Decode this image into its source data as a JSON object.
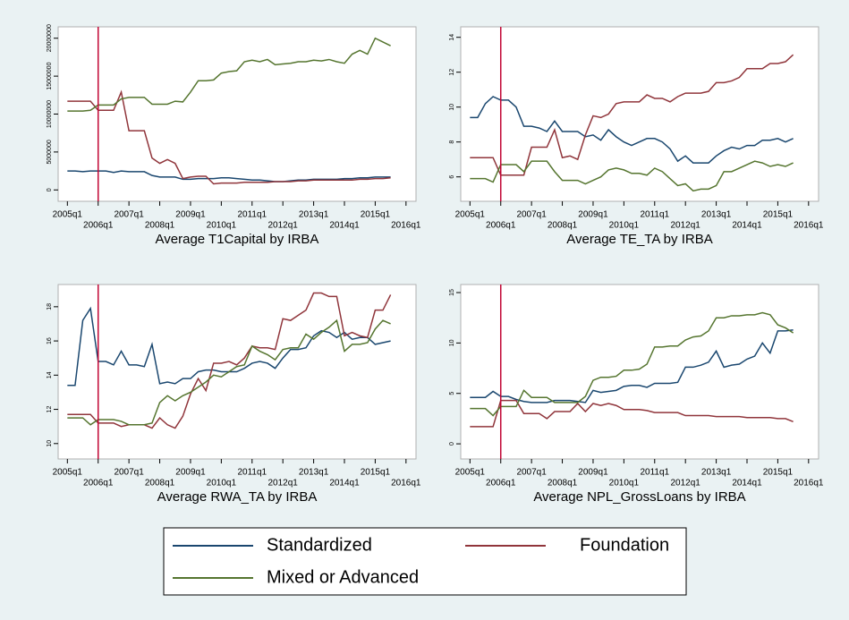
{
  "chart_data": [
    {
      "type": "line",
      "title": "Average T1Capital by IRBA",
      "x": [
        180,
        181,
        182,
        183,
        184,
        185,
        186,
        187,
        188,
        189,
        190,
        191,
        192,
        193,
        194,
        195,
        196,
        197,
        198,
        199,
        200,
        201,
        202,
        203,
        204,
        205,
        206,
        207,
        208,
        209,
        210,
        211,
        212,
        213,
        214,
        215,
        216,
        217,
        218,
        219,
        220,
        221,
        222
      ],
      "xlim": [
        178.8,
        225.3
      ],
      "xticks": [
        {
          "value": 180,
          "label": "2005q1"
        },
        {
          "value": 184,
          "label": "2006q1"
        },
        {
          "value": 188,
          "label": "2007q1"
        },
        {
          "value": 192,
          "label": "2008q1"
        },
        {
          "value": 196,
          "label": "2009q1"
        },
        {
          "value": 200,
          "label": "2010q1"
        },
        {
          "value": 204,
          "label": "2011q1"
        },
        {
          "value": 208,
          "label": "2012q1"
        },
        {
          "value": 212,
          "label": "2013q1"
        },
        {
          "value": 216,
          "label": "2014q1"
        },
        {
          "value": 220,
          "label": "2015q1"
        },
        {
          "value": 224,
          "label": "2016q1"
        }
      ],
      "ylim": [
        -1500000,
        21500000
      ],
      "yticks": [
        0,
        5000000,
        10000000,
        15000000,
        20000000
      ],
      "vline": 184,
      "vline_color": "#c10534",
      "series": [
        {
          "name": "Standardized",
          "color": "#1a476f",
          "values": [
            2500000,
            2500000,
            2400000,
            2500000,
            2500000,
            2500000,
            2300000,
            2500000,
            2400000,
            2400000,
            2400000,
            1900000,
            1700000,
            1700000,
            1700000,
            1400000,
            1400000,
            1500000,
            1500000,
            1500000,
            1600000,
            1600000,
            1500000,
            1400000,
            1300000,
            1300000,
            1200000,
            1100000,
            1100000,
            1200000,
            1300000,
            1300000,
            1400000,
            1400000,
            1400000,
            1400000,
            1500000,
            1500000,
            1600000,
            1600000,
            1700000,
            1700000,
            1700000
          ]
        },
        {
          "name": "Foundation",
          "color": "#90353b",
          "values": [
            11700000,
            11700000,
            11700000,
            11700000,
            10500000,
            10500000,
            10500000,
            12900000,
            7800000,
            7800000,
            7800000,
            4200000,
            3500000,
            4000000,
            3500000,
            1500000,
            1700000,
            1800000,
            1800000,
            800000,
            900000,
            900000,
            900000,
            1000000,
            1000000,
            1000000,
            1000000,
            1100000,
            1100000,
            1100000,
            1200000,
            1200000,
            1300000,
            1300000,
            1300000,
            1300000,
            1300000,
            1300000,
            1400000,
            1400000,
            1500000,
            1500000,
            1600000
          ]
        },
        {
          "name": "Mixed or Advanced",
          "color": "#55752f",
          "values": [
            10400000,
            10400000,
            10400000,
            10500000,
            11200000,
            11200000,
            11200000,
            12000000,
            12200000,
            12200000,
            12200000,
            11300000,
            11300000,
            11300000,
            11700000,
            11600000,
            12900000,
            14400000,
            14400000,
            14500000,
            15400000,
            15600000,
            15700000,
            16900000,
            17100000,
            16900000,
            17200000,
            16500000,
            16600000,
            16700000,
            16900000,
            16900000,
            17100000,
            17000000,
            17200000,
            16900000,
            16700000,
            17900000,
            18400000,
            17900000,
            20000000,
            19500000,
            19000000
          ]
        }
      ]
    },
    {
      "type": "line",
      "title": "Average TE_TA by IRBA",
      "x": [
        180,
        181,
        182,
        183,
        184,
        185,
        186,
        187,
        188,
        189,
        190,
        191,
        192,
        193,
        194,
        195,
        196,
        197,
        198,
        199,
        200,
        201,
        202,
        203,
        204,
        205,
        206,
        207,
        208,
        209,
        210,
        211,
        212,
        213,
        214,
        215,
        216,
        217,
        218,
        219,
        220,
        221,
        222
      ],
      "xlim": [
        178.8,
        225.3
      ],
      "xticks": [
        {
          "value": 180,
          "label": "2005q1"
        },
        {
          "value": 184,
          "label": "2006q1"
        },
        {
          "value": 188,
          "label": "2007q1"
        },
        {
          "value": 192,
          "label": "2008q1"
        },
        {
          "value": 196,
          "label": "2009q1"
        },
        {
          "value": 200,
          "label": "2010q1"
        },
        {
          "value": 204,
          "label": "2011q1"
        },
        {
          "value": 208,
          "label": "2012q1"
        },
        {
          "value": 212,
          "label": "2013q1"
        },
        {
          "value": 216,
          "label": "2014q1"
        },
        {
          "value": 220,
          "label": "2015q1"
        },
        {
          "value": 224,
          "label": "2016q1"
        }
      ],
      "ylim": [
        4.6,
        14.6
      ],
      "yticks": [
        6,
        8,
        10,
        12,
        14
      ],
      "vline": 184,
      "vline_color": "#c10534",
      "series": [
        {
          "color": "#1a476f",
          "values": [
            9.4,
            9.4,
            10.2,
            10.6,
            10.4,
            10.4,
            10.0,
            8.9,
            8.9,
            8.8,
            8.6,
            9.2,
            8.6,
            8.6,
            8.6,
            8.3,
            8.4,
            8.1,
            8.7,
            8.3,
            8.0,
            7.8,
            8.0,
            8.2,
            8.2,
            8.0,
            7.6,
            6.9,
            7.2,
            6.8,
            6.8,
            6.8,
            7.2,
            7.5,
            7.7,
            7.6,
            7.8,
            7.8,
            8.1,
            8.1,
            8.2,
            8.0,
            8.2
          ]
        },
        {
          "color": "#90353b",
          "values": [
            7.1,
            7.1,
            7.1,
            7.1,
            6.1,
            6.1,
            6.1,
            6.1,
            7.7,
            7.7,
            7.7,
            8.7,
            7.1,
            7.2,
            7.0,
            8.4,
            9.5,
            9.4,
            9.6,
            10.2,
            10.3,
            10.3,
            10.3,
            10.7,
            10.5,
            10.5,
            10.3,
            10.6,
            10.8,
            10.8,
            10.8,
            10.9,
            11.4,
            11.4,
            11.5,
            11.7,
            12.2,
            12.2,
            12.2,
            12.5,
            12.5,
            12.6,
            13.0
          ]
        },
        {
          "color": "#55752f",
          "values": [
            5.9,
            5.9,
            5.9,
            5.7,
            6.7,
            6.7,
            6.7,
            6.3,
            6.9,
            6.9,
            6.9,
            6.3,
            5.8,
            5.8,
            5.8,
            5.6,
            5.8,
            6.0,
            6.4,
            6.5,
            6.4,
            6.2,
            6.2,
            6.1,
            6.5,
            6.3,
            5.9,
            5.5,
            5.6,
            5.2,
            5.3,
            5.3,
            5.5,
            6.3,
            6.3,
            6.5,
            6.7,
            6.9,
            6.8,
            6.6,
            6.7,
            6.6,
            6.8
          ]
        }
      ]
    },
    {
      "type": "line",
      "title": "Average RWA_TA by IRBA",
      "x": [
        180,
        181,
        182,
        183,
        184,
        185,
        186,
        187,
        188,
        189,
        190,
        191,
        192,
        193,
        194,
        195,
        196,
        197,
        198,
        199,
        200,
        201,
        202,
        203,
        204,
        205,
        206,
        207,
        208,
        209,
        210,
        211,
        212,
        213,
        214,
        215,
        216,
        217,
        218,
        219,
        220,
        221,
        222
      ],
      "xlim": [
        178.8,
        225.3
      ],
      "xticks": [
        {
          "value": 180,
          "label": "2005q1"
        },
        {
          "value": 184,
          "label": "2006q1"
        },
        {
          "value": 188,
          "label": "2007q1"
        },
        {
          "value": 192,
          "label": "2008q1"
        },
        {
          "value": 196,
          "label": "2009q1"
        },
        {
          "value": 200,
          "label": "2010q1"
        },
        {
          "value": 204,
          "label": "2011q1"
        },
        {
          "value": 208,
          "label": "2012q1"
        },
        {
          "value": 212,
          "label": "2013q1"
        },
        {
          "value": 216,
          "label": "2014q1"
        },
        {
          "value": 220,
          "label": "2015q1"
        },
        {
          "value": 224,
          "label": "2016q1"
        }
      ],
      "ylim": [
        9.1,
        19.3
      ],
      "yticks": [
        10,
        12,
        14,
        16,
        18
      ],
      "vline": 184,
      "vline_color": "#c10534",
      "series": [
        {
          "color": "#1a476f",
          "values": [
            13.4,
            13.4,
            17.2,
            17.9,
            14.8,
            14.8,
            14.6,
            15.4,
            14.6,
            14.6,
            14.5,
            15.8,
            13.5,
            13.6,
            13.5,
            13.8,
            13.8,
            14.2,
            14.3,
            14.3,
            14.2,
            14.2,
            14.2,
            14.4,
            14.7,
            14.8,
            14.7,
            14.4,
            15.0,
            15.5,
            15.5,
            15.6,
            16.3,
            16.6,
            16.5,
            16.2,
            16.5,
            16.1,
            16.2,
            16.2,
            15.8,
            15.9,
            16.0
          ]
        },
        {
          "color": "#90353b",
          "values": [
            11.7,
            11.7,
            11.7,
            11.7,
            11.2,
            11.2,
            11.2,
            11.0,
            11.1,
            11.1,
            11.1,
            10.9,
            11.5,
            11.1,
            10.9,
            11.6,
            12.9,
            13.8,
            13.1,
            14.7,
            14.7,
            14.8,
            14.6,
            15.0,
            15.7,
            15.6,
            15.6,
            15.5,
            17.3,
            17.2,
            17.5,
            17.8,
            18.8,
            18.8,
            18.6,
            18.6,
            16.3,
            16.5,
            16.3,
            16.2,
            17.8,
            17.8,
            18.7
          ]
        },
        {
          "color": "#55752f",
          "values": [
            11.5,
            11.5,
            11.5,
            11.1,
            11.4,
            11.4,
            11.4,
            11.3,
            11.1,
            11.1,
            11.1,
            11.2,
            12.4,
            12.8,
            12.5,
            12.8,
            13.0,
            13.3,
            13.6,
            14.0,
            13.9,
            14.2,
            14.5,
            14.6,
            15.7,
            15.4,
            15.2,
            14.9,
            15.5,
            15.6,
            15.6,
            16.4,
            16.1,
            16.5,
            16.8,
            17.2,
            15.4,
            15.8,
            15.8,
            15.9,
            16.7,
            17.2,
            17.0
          ]
        }
      ]
    },
    {
      "type": "line",
      "title": "Average NPL_GrossLoans by IRBA",
      "x": [
        180,
        181,
        182,
        183,
        184,
        185,
        186,
        187,
        188,
        189,
        190,
        191,
        192,
        193,
        194,
        195,
        196,
        197,
        198,
        199,
        200,
        201,
        202,
        203,
        204,
        205,
        206,
        207,
        208,
        209,
        210,
        211,
        212,
        213,
        214,
        215,
        216,
        217,
        218,
        219,
        220,
        221,
        222
      ],
      "xlim": [
        178.8,
        225.3
      ],
      "xticks": [
        {
          "value": 180,
          "label": "2005q1"
        },
        {
          "value": 184,
          "label": "2006q1"
        },
        {
          "value": 188,
          "label": "2007q1"
        },
        {
          "value": 192,
          "label": "2008q1"
        },
        {
          "value": 196,
          "label": "2009q1"
        },
        {
          "value": 200,
          "label": "2010q1"
        },
        {
          "value": 204,
          "label": "2011q1"
        },
        {
          "value": 208,
          "label": "2012q1"
        },
        {
          "value": 212,
          "label": "2013q1"
        },
        {
          "value": 216,
          "label": "2014q1"
        },
        {
          "value": 220,
          "label": "2015q1"
        },
        {
          "value": 224,
          "label": "2016q1"
        }
      ],
      "ylim": [
        -1.5,
        15.8
      ],
      "yticks": [
        0,
        5,
        10,
        15
      ],
      "vline": 184,
      "vline_color": "#c10534",
      "series": [
        {
          "color": "#1a476f",
          "values": [
            4.6,
            4.6,
            4.6,
            5.2,
            4.7,
            4.7,
            4.4,
            4.2,
            4.1,
            4.1,
            4.1,
            4.3,
            4.3,
            4.3,
            4.2,
            4.1,
            5.3,
            5.1,
            5.2,
            5.3,
            5.7,
            5.8,
            5.8,
            5.6,
            6.0,
            6.0,
            6.0,
            6.1,
            7.6,
            7.6,
            7.8,
            8.1,
            9.2,
            7.6,
            7.8,
            7.9,
            8.4,
            8.7,
            10.0,
            9.0,
            11.2,
            11.2,
            11.3
          ]
        },
        {
          "color": "#90353b",
          "values": [
            1.7,
            1.7,
            1.7,
            1.7,
            4.3,
            4.3,
            4.3,
            3.0,
            3.0,
            3.0,
            2.5,
            3.2,
            3.2,
            3.2,
            4.0,
            3.2,
            4.0,
            3.8,
            4.0,
            3.8,
            3.4,
            3.4,
            3.4,
            3.3,
            3.1,
            3.1,
            3.1,
            3.1,
            2.8,
            2.8,
            2.8,
            2.8,
            2.7,
            2.7,
            2.7,
            2.7,
            2.6,
            2.6,
            2.6,
            2.6,
            2.5,
            2.5,
            2.2
          ]
        },
        {
          "color": "#55752f",
          "values": [
            3.5,
            3.5,
            3.5,
            2.8,
            3.7,
            3.7,
            3.7,
            5.3,
            4.6,
            4.6,
            4.6,
            4.1,
            4.1,
            4.1,
            4.1,
            4.7,
            6.3,
            6.6,
            6.6,
            6.7,
            7.3,
            7.3,
            7.4,
            7.9,
            9.6,
            9.6,
            9.7,
            9.7,
            10.3,
            10.6,
            10.7,
            11.2,
            12.5,
            12.5,
            12.7,
            12.7,
            12.8,
            12.8,
            13.0,
            12.8,
            11.8,
            11.5,
            11.0
          ]
        }
      ]
    }
  ]
}
